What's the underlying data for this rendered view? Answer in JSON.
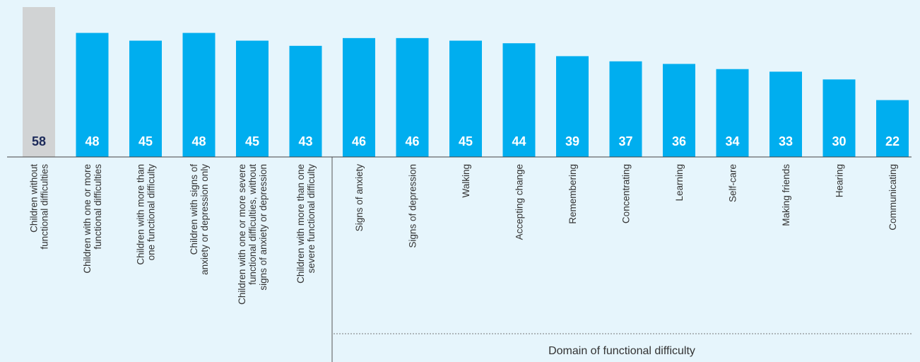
{
  "chart_data": {
    "type": "bar",
    "categories": [
      "Children without\nfunctional difficulties",
      "Children with one or more\nfunctional difficulties",
      "Children with more than\none functional difficulty",
      "Children with signs of\nanxiety or depression only",
      "Children with one or more severe\nfunctional difficulties, without\nsigns of anxiety or depression",
      "Children with more than one\nsevere functional difficulty",
      "Signs of anxiety",
      "Signs of depression",
      "Walking",
      "Accepting change",
      "Remembering",
      "Concentrating",
      "Learning",
      "Self-care",
      "Making friends",
      "Hearing",
      "Communicating"
    ],
    "values": [
      58,
      48,
      45,
      48,
      45,
      43,
      46,
      46,
      45,
      44,
      39,
      37,
      36,
      34,
      33,
      30,
      22
    ],
    "colors": [
      "#d1d3d4",
      "#00aeef",
      "#00aeef",
      "#00aeef",
      "#00aeef",
      "#00aeef",
      "#00aeef",
      "#00aeef",
      "#00aeef",
      "#00aeef",
      "#00aeef",
      "#00aeef",
      "#00aeef",
      "#00aeef",
      "#00aeef",
      "#00aeef",
      "#00aeef"
    ],
    "label_colors": [
      "#1c2a5a",
      "#ffffff",
      "#ffffff",
      "#ffffff",
      "#ffffff",
      "#ffffff",
      "#ffffff",
      "#ffffff",
      "#ffffff",
      "#ffffff",
      "#ffffff",
      "#ffffff",
      "#ffffff",
      "#ffffff",
      "#ffffff",
      "#ffffff",
      "#ffffff"
    ],
    "group_label": "Domain of functional difficulty"
  }
}
